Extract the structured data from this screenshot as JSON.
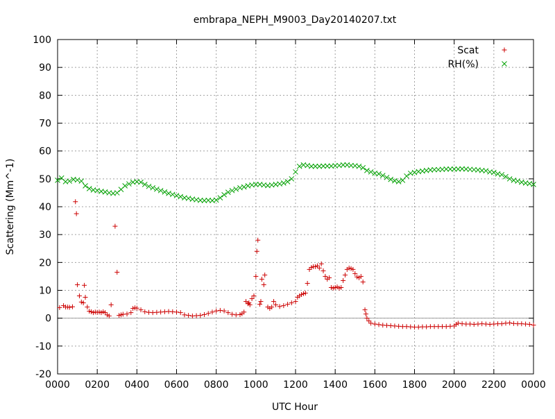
{
  "chart_data": {
    "type": "scatter",
    "title": "embrapa_NEPH_M9003_Day20140207.txt",
    "xlabel": "UTC Hour",
    "ylabel": "Scattering (Mm^-1)",
    "xlim": [
      0,
      24
    ],
    "ylim": [
      -20,
      100
    ],
    "grid": true,
    "legend_position": "top-right",
    "x_tick_labels": [
      "0000",
      "0200",
      "0400",
      "0600",
      "0800",
      "1000",
      "1200",
      "1400",
      "1600",
      "1800",
      "2000",
      "2200",
      "0000"
    ],
    "y_ticks": [
      -20,
      -10,
      0,
      10,
      20,
      30,
      40,
      50,
      60,
      70,
      80,
      90,
      100
    ],
    "zero_line": true,
    "series": [
      {
        "name": "Scat",
        "marker": "plus",
        "color": "#cc0000",
        "points": [
          [
            0.1,
            3.8
          ],
          [
            0.3,
            4.5
          ],
          [
            0.4,
            4.0
          ],
          [
            0.5,
            4.0
          ],
          [
            0.6,
            3.9
          ],
          [
            0.75,
            4.1
          ],
          [
            0.9,
            41.8
          ],
          [
            0.95,
            37.5
          ],
          [
            1.0,
            12.0
          ],
          [
            1.1,
            8.0
          ],
          [
            1.2,
            5.8
          ],
          [
            1.3,
            5.5
          ],
          [
            1.35,
            11.8
          ],
          [
            1.4,
            7.5
          ],
          [
            1.5,
            4.0
          ],
          [
            1.6,
            2.5
          ],
          [
            1.7,
            2.3
          ],
          [
            1.8,
            2.0
          ],
          [
            1.9,
            2.2
          ],
          [
            2.0,
            2.1
          ],
          [
            2.1,
            2.2
          ],
          [
            2.2,
            2.0
          ],
          [
            2.3,
            2.3
          ],
          [
            2.4,
            2.0
          ],
          [
            2.5,
            1.2
          ],
          [
            2.6,
            0.8
          ],
          [
            2.7,
            4.8
          ],
          [
            2.9,
            33.0
          ],
          [
            3.0,
            16.5
          ],
          [
            3.1,
            1.0
          ],
          [
            3.2,
            1.2
          ],
          [
            3.3,
            1.4
          ],
          [
            3.5,
            1.5
          ],
          [
            3.7,
            2.0
          ],
          [
            3.8,
            3.5
          ],
          [
            3.9,
            3.7
          ],
          [
            4.0,
            3.6
          ],
          [
            4.2,
            3.0
          ],
          [
            4.4,
            2.3
          ],
          [
            4.6,
            2.1
          ],
          [
            4.8,
            2.0
          ],
          [
            5.0,
            2.1
          ],
          [
            5.2,
            2.2
          ],
          [
            5.4,
            2.3
          ],
          [
            5.6,
            2.4
          ],
          [
            5.8,
            2.3
          ],
          [
            6.0,
            2.2
          ],
          [
            6.2,
            2.0
          ],
          [
            6.4,
            1.2
          ],
          [
            6.6,
            1.0
          ],
          [
            6.8,
            0.8
          ],
          [
            7.0,
            0.9
          ],
          [
            7.2,
            1.0
          ],
          [
            7.4,
            1.3
          ],
          [
            7.6,
            1.7
          ],
          [
            7.8,
            2.2
          ],
          [
            8.0,
            2.6
          ],
          [
            8.2,
            2.8
          ],
          [
            8.4,
            2.6
          ],
          [
            8.6,
            2.0
          ],
          [
            8.8,
            1.4
          ],
          [
            9.0,
            1.2
          ],
          [
            9.2,
            1.3
          ],
          [
            9.3,
            1.6
          ],
          [
            9.4,
            2.2
          ],
          [
            9.5,
            6.0
          ],
          [
            9.6,
            5.2
          ],
          [
            9.65,
            5.5
          ],
          [
            9.7,
            4.8
          ],
          [
            9.8,
            7.0
          ],
          [
            9.9,
            8.0
          ],
          [
            10.0,
            15.0
          ],
          [
            10.05,
            24.0
          ],
          [
            10.1,
            28.0
          ],
          [
            10.2,
            5.0
          ],
          [
            10.25,
            6.0
          ],
          [
            10.3,
            14.0
          ],
          [
            10.4,
            12.0
          ],
          [
            10.45,
            15.5
          ],
          [
            10.6,
            4.0
          ],
          [
            10.7,
            3.5
          ],
          [
            10.8,
            4.0
          ],
          [
            10.9,
            6.0
          ],
          [
            11.0,
            4.8
          ],
          [
            11.2,
            4.2
          ],
          [
            11.4,
            4.5
          ],
          [
            11.6,
            5.0
          ],
          [
            11.8,
            5.5
          ],
          [
            12.0,
            6.0
          ],
          [
            12.1,
            7.5
          ],
          [
            12.2,
            8.0
          ],
          [
            12.3,
            8.5
          ],
          [
            12.4,
            8.8
          ],
          [
            12.5,
            9.0
          ],
          [
            12.6,
            12.5
          ],
          [
            12.7,
            17.5
          ],
          [
            12.8,
            18.2
          ],
          [
            12.9,
            18.5
          ],
          [
            13.0,
            18.5
          ],
          [
            13.1,
            18.8
          ],
          [
            13.2,
            18.0
          ],
          [
            13.3,
            19.5
          ],
          [
            13.4,
            17.0
          ],
          [
            13.5,
            15.0
          ],
          [
            13.6,
            14.0
          ],
          [
            13.7,
            14.5
          ],
          [
            13.8,
            11.0
          ],
          [
            13.9,
            10.8
          ],
          [
            14.0,
            11.0
          ],
          [
            14.1,
            11.2
          ],
          [
            14.2,
            10.8
          ],
          [
            14.3,
            11.0
          ],
          [
            14.4,
            13.5
          ],
          [
            14.5,
            15.5
          ],
          [
            14.6,
            17.5
          ],
          [
            14.7,
            18.0
          ],
          [
            14.8,
            17.8
          ],
          [
            14.9,
            17.5
          ],
          [
            15.0,
            16.0
          ],
          [
            15.1,
            14.8
          ],
          [
            15.2,
            14.5
          ],
          [
            15.3,
            15.0
          ],
          [
            15.4,
            13.0
          ],
          [
            15.5,
            3.0
          ],
          [
            15.55,
            1.5
          ],
          [
            15.6,
            0.0
          ],
          [
            15.7,
            -1.0
          ],
          [
            15.8,
            -1.8
          ],
          [
            16.0,
            -2.1
          ],
          [
            16.2,
            -2.3
          ],
          [
            16.4,
            -2.5
          ],
          [
            16.6,
            -2.6
          ],
          [
            16.8,
            -2.7
          ],
          [
            17.0,
            -2.8
          ],
          [
            17.2,
            -2.9
          ],
          [
            17.4,
            -3.0
          ],
          [
            17.6,
            -3.0
          ],
          [
            17.8,
            -3.1
          ],
          [
            18.0,
            -3.2
          ],
          [
            18.2,
            -3.2
          ],
          [
            18.4,
            -3.1
          ],
          [
            18.6,
            -3.1
          ],
          [
            18.8,
            -3.0
          ],
          [
            19.0,
            -3.0
          ],
          [
            19.2,
            -3.0
          ],
          [
            19.4,
            -3.0
          ],
          [
            19.6,
            -3.0
          ],
          [
            19.8,
            -2.9
          ],
          [
            20.0,
            -2.8
          ],
          [
            20.1,
            -2.2
          ],
          [
            20.2,
            -1.8
          ],
          [
            20.4,
            -2.0
          ],
          [
            20.6,
            -2.1
          ],
          [
            20.8,
            -2.1
          ],
          [
            21.0,
            -2.2
          ],
          [
            21.2,
            -2.1
          ],
          [
            21.4,
            -2.0
          ],
          [
            21.6,
            -2.1
          ],
          [
            21.8,
            -2.2
          ],
          [
            22.0,
            -2.1
          ],
          [
            22.2,
            -2.0
          ],
          [
            22.4,
            -2.0
          ],
          [
            22.6,
            -1.8
          ],
          [
            22.8,
            -1.7
          ],
          [
            23.0,
            -1.9
          ],
          [
            23.2,
            -2.0
          ],
          [
            23.4,
            -2.0
          ],
          [
            23.6,
            -2.1
          ],
          [
            23.8,
            -2.2
          ],
          [
            24.0,
            -2.5
          ]
        ]
      },
      {
        "name": "RH(%)",
        "marker": "cross",
        "color": "#00a000",
        "points": [
          [
            0.0,
            49.5
          ],
          [
            0.2,
            50.3
          ],
          [
            0.4,
            49.0
          ],
          [
            0.6,
            49.2
          ],
          [
            0.8,
            49.8
          ],
          [
            1.0,
            49.6
          ],
          [
            1.2,
            49.2
          ],
          [
            1.4,
            47.5
          ],
          [
            1.6,
            46.5
          ],
          [
            1.8,
            46.0
          ],
          [
            2.0,
            45.8
          ],
          [
            2.2,
            45.5
          ],
          [
            2.4,
            45.3
          ],
          [
            2.6,
            45.0
          ],
          [
            2.8,
            44.8
          ],
          [
            3.0,
            45.0
          ],
          [
            3.2,
            46.2
          ],
          [
            3.4,
            47.5
          ],
          [
            3.6,
            48.2
          ],
          [
            3.8,
            48.8
          ],
          [
            4.0,
            49.0
          ],
          [
            4.2,
            48.8
          ],
          [
            4.4,
            48.0
          ],
          [
            4.6,
            47.3
          ],
          [
            4.8,
            46.8
          ],
          [
            5.0,
            46.3
          ],
          [
            5.2,
            45.8
          ],
          [
            5.4,
            45.3
          ],
          [
            5.6,
            44.8
          ],
          [
            5.8,
            44.4
          ],
          [
            6.0,
            44.0
          ],
          [
            6.2,
            43.6
          ],
          [
            6.4,
            43.2
          ],
          [
            6.6,
            43.0
          ],
          [
            6.8,
            42.7
          ],
          [
            7.0,
            42.5
          ],
          [
            7.2,
            42.3
          ],
          [
            7.4,
            42.2
          ],
          [
            7.6,
            42.3
          ],
          [
            7.8,
            42.2
          ],
          [
            8.0,
            42.4
          ],
          [
            8.2,
            43.2
          ],
          [
            8.4,
            44.3
          ],
          [
            8.6,
            45.2
          ],
          [
            8.8,
            45.8
          ],
          [
            9.0,
            46.3
          ],
          [
            9.2,
            46.8
          ],
          [
            9.4,
            47.1
          ],
          [
            9.6,
            47.5
          ],
          [
            9.8,
            47.8
          ],
          [
            10.0,
            48.0
          ],
          [
            10.2,
            48.0
          ],
          [
            10.4,
            47.8
          ],
          [
            10.6,
            47.6
          ],
          [
            10.8,
            47.8
          ],
          [
            11.0,
            48.0
          ],
          [
            11.2,
            48.2
          ],
          [
            11.4,
            48.5
          ],
          [
            11.6,
            49.0
          ],
          [
            11.8,
            50.0
          ],
          [
            12.0,
            52.5
          ],
          [
            12.2,
            54.5
          ],
          [
            12.4,
            55.0
          ],
          [
            12.6,
            54.8
          ],
          [
            12.8,
            54.5
          ],
          [
            13.0,
            54.5
          ],
          [
            13.2,
            54.5
          ],
          [
            13.4,
            54.6
          ],
          [
            13.6,
            54.6
          ],
          [
            13.8,
            54.6
          ],
          [
            14.0,
            54.7
          ],
          [
            14.2,
            54.8
          ],
          [
            14.4,
            55.0
          ],
          [
            14.6,
            55.0
          ],
          [
            14.8,
            54.8
          ],
          [
            15.0,
            54.7
          ],
          [
            15.2,
            54.5
          ],
          [
            15.4,
            54.0
          ],
          [
            15.6,
            53.0
          ],
          [
            15.8,
            52.5
          ],
          [
            16.0,
            52.0
          ],
          [
            16.2,
            51.8
          ],
          [
            16.4,
            51.2
          ],
          [
            16.6,
            50.5
          ],
          [
            16.8,
            49.8
          ],
          [
            17.0,
            49.3
          ],
          [
            17.2,
            49.0
          ],
          [
            17.4,
            49.5
          ],
          [
            17.6,
            51.0
          ],
          [
            17.8,
            52.0
          ],
          [
            18.0,
            52.3
          ],
          [
            18.2,
            52.6
          ],
          [
            18.4,
            52.8
          ],
          [
            18.6,
            53.0
          ],
          [
            18.8,
            53.2
          ],
          [
            19.0,
            53.3
          ],
          [
            19.2,
            53.3
          ],
          [
            19.4,
            53.4
          ],
          [
            19.6,
            53.5
          ],
          [
            19.8,
            53.5
          ],
          [
            20.0,
            53.5
          ],
          [
            20.2,
            53.5
          ],
          [
            20.4,
            53.6
          ],
          [
            20.6,
            53.5
          ],
          [
            20.8,
            53.4
          ],
          [
            21.0,
            53.3
          ],
          [
            21.2,
            53.2
          ],
          [
            21.4,
            53.0
          ],
          [
            21.6,
            52.9
          ],
          [
            21.8,
            52.5
          ],
          [
            22.0,
            52.3
          ],
          [
            22.2,
            51.8
          ],
          [
            22.4,
            51.5
          ],
          [
            22.6,
            50.8
          ],
          [
            22.8,
            50.0
          ],
          [
            23.0,
            49.5
          ],
          [
            23.2,
            49.2
          ],
          [
            23.4,
            48.8
          ],
          [
            23.6,
            48.5
          ],
          [
            23.8,
            48.3
          ],
          [
            24.0,
            48.0
          ]
        ]
      }
    ]
  }
}
